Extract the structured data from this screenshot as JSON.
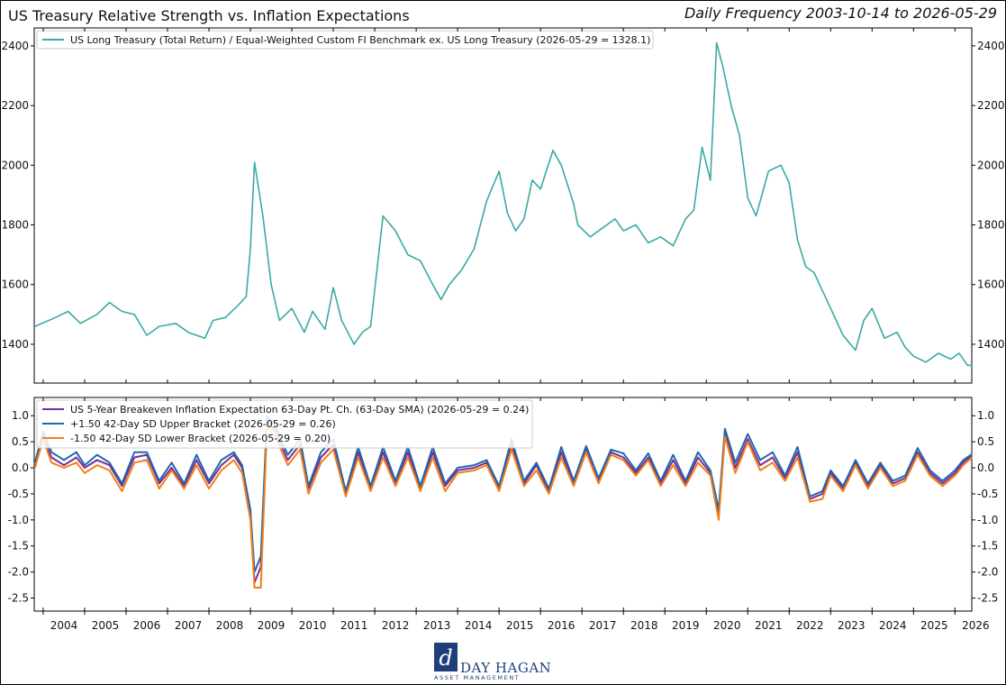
{
  "header": {
    "title": "US Treasury Relative Strength vs. Inflation Expectations",
    "subtitle": "Daily Frequency 2003-10-14 to 2026-05-29"
  },
  "x_ticks": [
    "2004",
    "2005",
    "2006",
    "2007",
    "2008",
    "2009",
    "2010",
    "2011",
    "2012",
    "2013",
    "2014",
    "2015",
    "2016",
    "2017",
    "2018",
    "2019",
    "2020",
    "2021",
    "2022",
    "2023",
    "2024",
    "2025",
    "2026"
  ],
  "chart_data": [
    {
      "type": "line",
      "x_range": [
        "2003-10-14",
        "2026-05-29"
      ],
      "y_ticks": [
        "1400",
        "1600",
        "1800",
        "2000",
        "2200",
        "2400"
      ],
      "ylim": [
        1270,
        2460
      ],
      "legend_position": "top-left",
      "series": [
        {
          "name": "US Long Treasury (Total Return) / Equal-Weighted Custom FI Benchmark ex. US Long Treasury (2026-05-29 = 1328.1)",
          "color": "#3aa9a6",
          "x": [
            2003.8,
            2004.3,
            2004.6,
            2004.9,
            2005.3,
            2005.6,
            2005.9,
            2006.2,
            2006.5,
            2006.8,
            2007.2,
            2007.5,
            2007.9,
            2008.1,
            2008.4,
            2008.7,
            2008.9,
            2009.0,
            2009.1,
            2009.3,
            2009.5,
            2009.7,
            2010.0,
            2010.3,
            2010.5,
            2010.8,
            2011.0,
            2011.2,
            2011.5,
            2011.7,
            2011.9,
            2012.2,
            2012.5,
            2012.8,
            2013.1,
            2013.4,
            2013.6,
            2013.8,
            2014.1,
            2014.4,
            2014.7,
            2015.0,
            2015.2,
            2015.4,
            2015.6,
            2015.8,
            2016.0,
            2016.3,
            2016.5,
            2016.8,
            2016.9,
            2017.2,
            2017.5,
            2017.8,
            2018.0,
            2018.3,
            2018.6,
            2018.9,
            2019.2,
            2019.5,
            2019.7,
            2019.9,
            2020.1,
            2020.25,
            2020.4,
            2020.6,
            2020.8,
            2021.0,
            2021.2,
            2021.5,
            2021.8,
            2022.0,
            2022.2,
            2022.4,
            2022.6,
            2022.8,
            2023.0,
            2023.3,
            2023.6,
            2023.8,
            2024.0,
            2024.3,
            2024.6,
            2024.8,
            2025.0,
            2025.3,
            2025.6,
            2025.9,
            2026.1,
            2026.3,
            2026.41
          ],
          "values": [
            1460,
            1490,
            1510,
            1470,
            1500,
            1540,
            1510,
            1500,
            1430,
            1460,
            1470,
            1440,
            1420,
            1480,
            1490,
            1530,
            1560,
            1720,
            2010,
            1830,
            1600,
            1480,
            1520,
            1440,
            1510,
            1450,
            1590,
            1480,
            1400,
            1440,
            1460,
            1830,
            1780,
            1700,
            1680,
            1600,
            1550,
            1600,
            1650,
            1720,
            1880,
            1980,
            1840,
            1780,
            1820,
            1950,
            1920,
            2050,
            2000,
            1870,
            1800,
            1760,
            1790,
            1820,
            1780,
            1800,
            1740,
            1760,
            1730,
            1820,
            1850,
            2060,
            1950,
            2410,
            2330,
            2200,
            2100,
            1890,
            1830,
            1980,
            2000,
            1940,
            1750,
            1660,
            1640,
            1580,
            1520,
            1430,
            1380,
            1480,
            1520,
            1420,
            1440,
            1390,
            1360,
            1340,
            1370,
            1350,
            1370,
            1330,
            1328
          ]
        }
      ]
    },
    {
      "type": "line",
      "x_range": [
        "2003-10-14",
        "2026-05-29"
      ],
      "y_ticks": [
        "1.0",
        "0.5",
        "0.0",
        "-0.5",
        "-1.0",
        "-1.5",
        "-2.0",
        "-2.5"
      ],
      "ylim": [
        -2.75,
        1.35
      ],
      "legend_position": "top-left",
      "series": [
        {
          "name": "US 5-Year Breakeven Inflation Expectation 63-Day Pt. Ch. (63-Day SMA) (2026-05-29 = 0.24)",
          "color": "#7b2f94",
          "x": [
            2003.8,
            2004.0,
            2004.2,
            2004.5,
            2004.8,
            2005.0,
            2005.3,
            2005.6,
            2005.9,
            2006.2,
            2006.5,
            2006.8,
            2007.1,
            2007.4,
            2007.7,
            2008.0,
            2008.3,
            2008.6,
            2008.8,
            2009.0,
            2009.1,
            2009.25,
            2009.4,
            2009.6,
            2009.9,
            2010.2,
            2010.4,
            2010.7,
            2011.0,
            2011.3,
            2011.6,
            2011.9,
            2012.2,
            2012.5,
            2012.8,
            2013.1,
            2013.4,
            2013.7,
            2014.0,
            2014.4,
            2014.7,
            2015.0,
            2015.3,
            2015.6,
            2015.9,
            2016.2,
            2016.5,
            2016.8,
            2017.1,
            2017.4,
            2017.7,
            2018.0,
            2018.3,
            2018.6,
            2018.9,
            2019.2,
            2019.5,
            2019.8,
            2020.1,
            2020.3,
            2020.45,
            2020.7,
            2021.0,
            2021.3,
            2021.6,
            2021.9,
            2022.2,
            2022.5,
            2022.8,
            2023.0,
            2023.3,
            2023.6,
            2023.9,
            2024.2,
            2024.5,
            2024.8,
            2025.1,
            2025.4,
            2025.7,
            2026.0,
            2026.2,
            2026.41
          ],
          "values": [
            0.0,
            0.6,
            0.2,
            0.05,
            0.2,
            0.0,
            0.15,
            0.05,
            -0.35,
            0.2,
            0.25,
            -0.3,
            0.0,
            -0.35,
            0.15,
            -0.3,
            0.05,
            0.25,
            0.0,
            -0.9,
            -2.2,
            -1.9,
            0.9,
            0.7,
            0.15,
            0.45,
            -0.4,
            0.2,
            0.45,
            -0.5,
            0.3,
            -0.4,
            0.3,
            -0.3,
            0.3,
            -0.4,
            0.3,
            -0.35,
            -0.05,
            0.0,
            0.1,
            -0.4,
            0.45,
            -0.3,
            0.05,
            -0.45,
            0.3,
            -0.3,
            0.35,
            -0.25,
            0.3,
            0.2,
            -0.1,
            0.2,
            -0.3,
            0.15,
            -0.3,
            0.2,
            -0.1,
            -0.9,
            0.7,
            0.0,
            0.55,
            0.05,
            0.2,
            -0.2,
            0.3,
            -0.6,
            -0.5,
            -0.1,
            -0.4,
            0.1,
            -0.35,
            0.05,
            -0.3,
            -0.2,
            0.3,
            -0.1,
            -0.3,
            -0.1,
            0.1,
            0.24
          ]
        },
        {
          "name": "+1.50 42-Day SD Upper Bracket (2026-05-29 = 0.26)",
          "color": "#2166ac",
          "x": [
            2003.8,
            2004.0,
            2004.2,
            2004.5,
            2004.8,
            2005.0,
            2005.3,
            2005.6,
            2005.9,
            2006.2,
            2006.5,
            2006.8,
            2007.1,
            2007.4,
            2007.7,
            2008.0,
            2008.3,
            2008.6,
            2008.8,
            2009.0,
            2009.1,
            2009.25,
            2009.4,
            2009.6,
            2009.9,
            2010.2,
            2010.4,
            2010.7,
            2011.0,
            2011.3,
            2011.6,
            2011.9,
            2012.2,
            2012.5,
            2012.8,
            2013.1,
            2013.4,
            2013.7,
            2014.0,
            2014.4,
            2014.7,
            2015.0,
            2015.3,
            2015.6,
            2015.9,
            2016.2,
            2016.5,
            2016.8,
            2017.1,
            2017.4,
            2017.7,
            2018.0,
            2018.3,
            2018.6,
            2018.9,
            2019.2,
            2019.5,
            2019.8,
            2020.1,
            2020.3,
            2020.45,
            2020.7,
            2021.0,
            2021.3,
            2021.6,
            2021.9,
            2022.2,
            2022.5,
            2022.8,
            2023.0,
            2023.3,
            2023.6,
            2023.9,
            2024.2,
            2024.5,
            2024.8,
            2025.1,
            2025.4,
            2025.7,
            2026.0,
            2026.2,
            2026.41
          ],
          "values": [
            0.1,
            0.7,
            0.3,
            0.15,
            0.3,
            0.05,
            0.25,
            0.1,
            -0.3,
            0.3,
            0.3,
            -0.25,
            0.1,
            -0.3,
            0.25,
            -0.25,
            0.15,
            0.3,
            0.05,
            -0.8,
            -2.0,
            -1.7,
            1.0,
            0.8,
            0.25,
            0.55,
            -0.35,
            0.3,
            0.55,
            -0.45,
            0.4,
            -0.35,
            0.4,
            -0.25,
            0.4,
            -0.35,
            0.4,
            -0.3,
            0.0,
            0.05,
            0.15,
            -0.35,
            0.55,
            -0.25,
            0.1,
            -0.4,
            0.4,
            -0.25,
            0.42,
            -0.2,
            0.35,
            0.28,
            -0.05,
            0.28,
            -0.25,
            0.25,
            -0.25,
            0.3,
            -0.05,
            -0.8,
            0.75,
            0.1,
            0.65,
            0.15,
            0.3,
            -0.15,
            0.4,
            -0.55,
            -0.45,
            -0.05,
            -0.35,
            0.15,
            -0.3,
            0.1,
            -0.25,
            -0.15,
            0.38,
            -0.05,
            -0.25,
            -0.05,
            0.15,
            0.26
          ]
        },
        {
          "name": "-1.50 42-Day SD Lower Bracket (2026-05-29 = 0.20)",
          "color": "#f57f17",
          "x": [
            2003.8,
            2004.0,
            2004.2,
            2004.5,
            2004.8,
            2005.0,
            2005.3,
            2005.6,
            2005.9,
            2006.2,
            2006.5,
            2006.8,
            2007.1,
            2007.4,
            2007.7,
            2008.0,
            2008.3,
            2008.6,
            2008.8,
            2009.0,
            2009.1,
            2009.25,
            2009.4,
            2009.6,
            2009.9,
            2010.2,
            2010.4,
            2010.7,
            2011.0,
            2011.3,
            2011.6,
            2011.9,
            2012.2,
            2012.5,
            2012.8,
            2013.1,
            2013.4,
            2013.7,
            2014.0,
            2014.4,
            2014.7,
            2015.0,
            2015.3,
            2015.6,
            2015.9,
            2016.2,
            2016.5,
            2016.8,
            2017.1,
            2017.4,
            2017.7,
            2018.0,
            2018.3,
            2018.6,
            2018.9,
            2019.2,
            2019.5,
            2019.8,
            2020.1,
            2020.3,
            2020.45,
            2020.7,
            2021.0,
            2021.3,
            2021.6,
            2021.9,
            2022.2,
            2022.5,
            2022.8,
            2023.0,
            2023.3,
            2023.6,
            2023.9,
            2024.2,
            2024.5,
            2024.8,
            2025.1,
            2025.4,
            2025.7,
            2026.0,
            2026.2,
            2026.41
          ],
          "values": [
            0.0,
            0.55,
            0.1,
            0.0,
            0.1,
            -0.1,
            0.05,
            -0.05,
            -0.45,
            0.1,
            0.15,
            -0.4,
            -0.05,
            -0.4,
            0.05,
            -0.4,
            -0.05,
            0.15,
            -0.1,
            -1.0,
            -2.3,
            -2.3,
            0.8,
            0.6,
            0.05,
            0.35,
            -0.5,
            0.1,
            0.35,
            -0.55,
            0.2,
            -0.45,
            0.2,
            -0.35,
            0.2,
            -0.45,
            0.2,
            -0.45,
            -0.1,
            -0.05,
            0.05,
            -0.45,
            0.35,
            -0.35,
            -0.05,
            -0.5,
            0.2,
            -0.35,
            0.3,
            -0.3,
            0.25,
            0.15,
            -0.15,
            0.15,
            -0.35,
            0.05,
            -0.35,
            0.1,
            -0.15,
            -1.0,
            0.6,
            -0.1,
            0.5,
            -0.05,
            0.1,
            -0.25,
            0.2,
            -0.65,
            -0.6,
            -0.15,
            -0.45,
            0.05,
            -0.4,
            0.0,
            -0.35,
            -0.25,
            0.25,
            -0.15,
            -0.35,
            -0.15,
            0.05,
            0.2
          ]
        }
      ]
    }
  ],
  "logo": {
    "mark": "dh-monogram-icon",
    "name": "DAY HAGAN",
    "tagline": "ASSET MANAGEMENT",
    "color": "#1f3f7a"
  }
}
